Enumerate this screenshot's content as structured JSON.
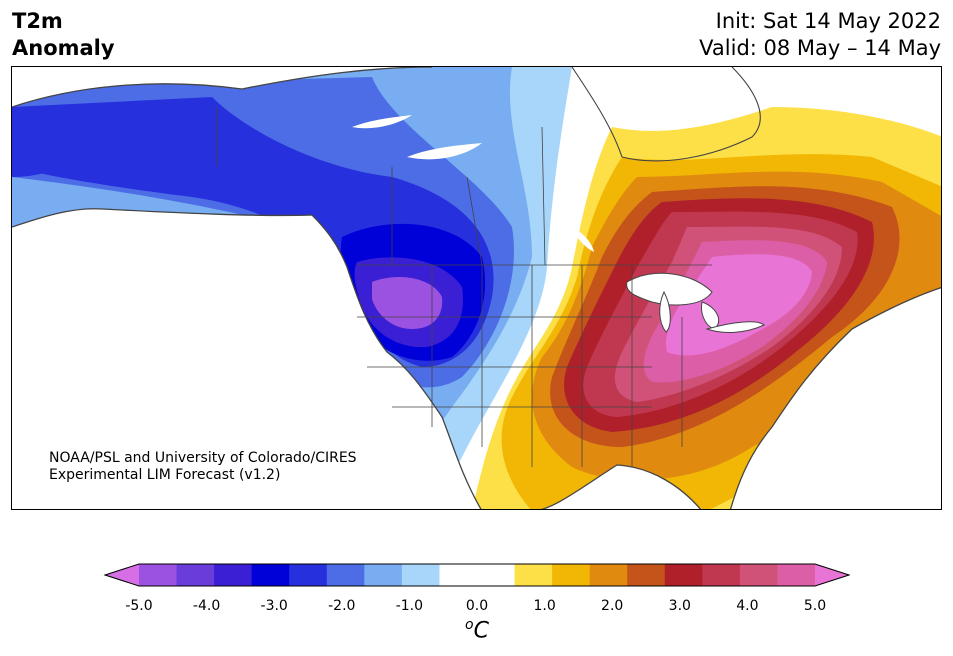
{
  "title": {
    "line1": "T2m",
    "line2": "Anomaly",
    "init": "Init: Sat 14 May 2022",
    "valid": "Valid: 08 May – 14 May"
  },
  "credit": {
    "line1": "NOAA/PSL and University of Colorado/CIRES",
    "line2": "Experimental LIM Forecast (v1.2)"
  },
  "colorbar": {
    "unit_sup": "o",
    "unit_base": "C",
    "ticks": [
      "-5.0",
      "-4.0",
      "-3.0",
      "-2.0",
      "-1.0",
      "0.0",
      "1.0",
      "2.0",
      "3.0",
      "4.0",
      "5.0"
    ],
    "colors": [
      "#d66fe6",
      "#9b52e0",
      "#6a3ddb",
      "#3a1fd4",
      "#0000d8",
      "#2630dd",
      "#4d6de6",
      "#78aef1",
      "#a8d6fa",
      "#ffffff",
      "#ffffff",
      "#fde047",
      "#f2b705",
      "#e08a10",
      "#c4541a",
      "#b0202a",
      "#c03850",
      "#d05278",
      "#dc5ea6",
      "#e874d6"
    ]
  },
  "map": {
    "region": "North America",
    "variable": "2 m temperature anomaly",
    "palette": {
      "cold_extreme": "#6a3ddb",
      "cold_deep": "#0000d8",
      "cold_mid": "#4d6de6",
      "cold_light": "#a8d6fa",
      "warm_light": "#fde047",
      "warm_mid": "#e08a10",
      "warm_deep": "#b0202a",
      "warm_extreme": "#e874d6",
      "coast": "#444444"
    }
  }
}
